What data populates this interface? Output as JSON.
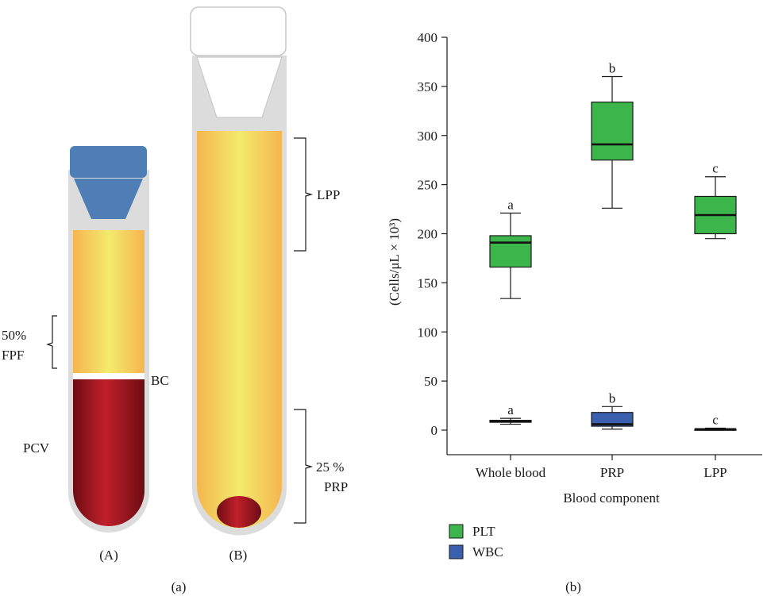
{
  "panel_a": {
    "panel_label": "(a)",
    "tube_a": {
      "label": "(A)",
      "annotations": {
        "fpf_line1": "50%",
        "fpf_line2": "FPF",
        "bc": "BC",
        "pcv": "PCV"
      },
      "colors": {
        "cap": "#4f7db5",
        "plasma_light": "#f4ea6e",
        "plasma_dark": "#f5b64f",
        "rbc": "#c0202a",
        "rbc_dark": "#6e0c14",
        "glass": "#dcdcdc"
      }
    },
    "tube_b": {
      "label": "(B)",
      "annotations": {
        "lpp": "LPP",
        "prp_pct": "25 %",
        "prp": "PRP"
      },
      "colors": {
        "cap": "#ffffff",
        "glass": "#dcdcdc"
      }
    }
  },
  "panel_b": {
    "panel_label": "(b)",
    "legend": [
      {
        "label": "PLT",
        "color": "#3cb54a"
      },
      {
        "label": "WBC",
        "color": "#3a5fae"
      }
    ]
  },
  "chart_data": {
    "type": "box",
    "xlabel": "Blood component",
    "ylabel": "(Cells/μL × 10³)",
    "categories": [
      "Whole blood",
      "PRP",
      "LPP"
    ],
    "ylim": [
      -25,
      400
    ],
    "yticks": [
      0,
      50,
      100,
      150,
      200,
      250,
      300,
      350,
      400
    ],
    "grid": false,
    "legend_position": "bottom-left",
    "series": [
      {
        "name": "PLT",
        "color": "#3cb54a",
        "boxes": [
          {
            "category": "Whole blood",
            "min": 134,
            "q1": 166,
            "median": 191,
            "q3": 198,
            "max": 221,
            "letter": "a"
          },
          {
            "category": "PRP",
            "min": 226,
            "q1": 275,
            "median": 291,
            "q3": 334,
            "max": 360,
            "letter": "b"
          },
          {
            "category": "LPP",
            "min": 195,
            "q1": 200,
            "median": 219,
            "q3": 238,
            "max": 258,
            "letter": "c"
          }
        ]
      },
      {
        "name": "WBC",
        "color": "#3a5fae",
        "boxes": [
          {
            "category": "Whole blood",
            "min": 6,
            "q1": 8,
            "median": 9,
            "q3": 10,
            "max": 12,
            "letter": "a"
          },
          {
            "category": "PRP",
            "min": 1,
            "q1": 4,
            "median": 6,
            "q3": 18,
            "max": 24,
            "letter": "b"
          },
          {
            "category": "LPP",
            "min": 0,
            "q1": 0,
            "median": 1,
            "q3": 1,
            "max": 2,
            "letter": "c"
          }
        ]
      }
    ]
  }
}
